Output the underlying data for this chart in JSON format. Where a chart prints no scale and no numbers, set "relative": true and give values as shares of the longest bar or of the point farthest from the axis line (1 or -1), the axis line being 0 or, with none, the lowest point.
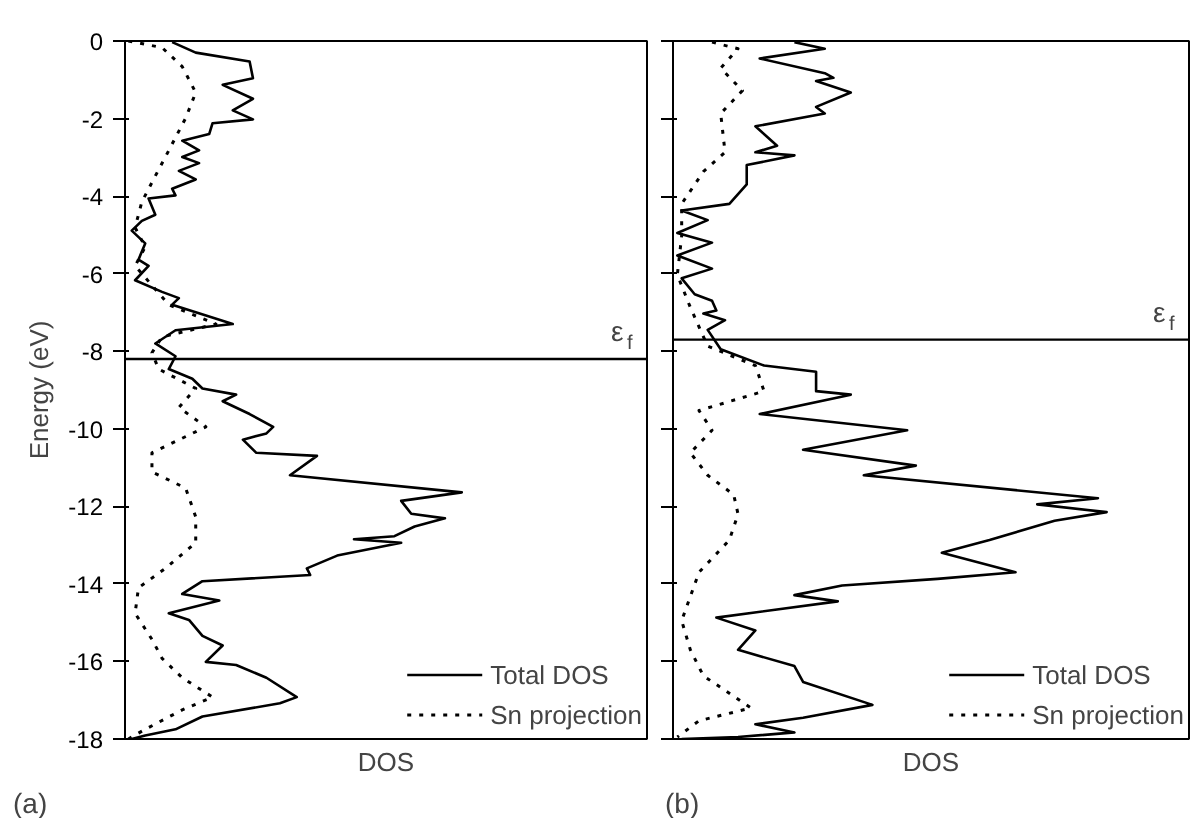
{
  "chart_data": [
    {
      "type": "line",
      "orientation": "horizontal",
      "relative": true,
      "xlabel": "DOS",
      "ylabel": "Energy (eV)",
      "ylim": [
        -18,
        0
      ],
      "yticks": [
        0,
        -2,
        -4,
        -6,
        -8,
        -10,
        -12,
        -14,
        -16,
        -18
      ],
      "grid": false,
      "legend": "bottom right",
      "annotations": [
        "(a)"
      ],
      "ref_lines": [
        {
          "axis": "y",
          "value": -8.2,
          "label": "ε$_{f}$",
          "color": "#000000",
          "line_style": "solid"
        }
      ],
      "series": [
        {
          "name": "Total DOS",
          "color": "#000000",
          "line_style": "solid",
          "x": [
            -0.03,
            -0.3,
            -0.53,
            -0.96,
            -1.13,
            -1.49,
            -1.79,
            -2.02,
            -2.12,
            -2.4,
            -2.57,
            -2.82,
            -2.99,
            -3.15,
            -3.35,
            -3.57,
            -3.81,
            -3.98,
            -4.06,
            -4.48,
            -4.64,
            -4.89,
            -5.22,
            -5.64,
            -5.8,
            -6.17,
            -6.47,
            -6.63,
            -6.8,
            -7.3,
            -7.46,
            -7.8,
            -8.13,
            -8.46,
            -8.71,
            -8.96,
            -9.12,
            -9.29,
            -9.62,
            -9.95,
            -10.12,
            -10.28,
            -10.62,
            -10.7,
            -11.2,
            -11.64,
            -11.86,
            -12.19,
            -12.31,
            -12.52,
            -12.77,
            -12.85,
            -12.94,
            -13.27,
            -13.6,
            -13.77,
            -13.93,
            -14.26,
            -14.43,
            -14.76,
            -14.93,
            -15.34,
            -15.59,
            -16.01,
            -16.09,
            -16.42,
            -16.92,
            -17.08,
            -17.42,
            -17.75,
            -17.91,
            -18
          ],
          "values": [
            0.14,
            0.21,
            0.37,
            0.38,
            0.29,
            0.38,
            0.32,
            0.38,
            0.26,
            0.25,
            0.17,
            0.22,
            0.17,
            0.22,
            0.16,
            0.21,
            0.14,
            0.15,
            0.07,
            0.09,
            0.05,
            0.02,
            0.06,
            0.04,
            0.07,
            0.03,
            0.11,
            0.16,
            0.14,
            0.32,
            0.15,
            0.09,
            0.15,
            0.13,
            0.2,
            0.23,
            0.33,
            0.29,
            0.37,
            0.44,
            0.42,
            0.35,
            0.39,
            0.57,
            0.49,
            1.0,
            0.82,
            0.85,
            0.95,
            0.86,
            0.8,
            0.68,
            0.82,
            0.63,
            0.54,
            0.55,
            0.23,
            0.17,
            0.28,
            0.13,
            0.19,
            0.23,
            0.29,
            0.24,
            0.33,
            0.42,
            0.51,
            0.46,
            0.23,
            0.15,
            0.06,
            0.02
          ]
        },
        {
          "name": "Sn projection",
          "color": "#000000",
          "line_style": "dotted",
          "x": [
            0,
            -0.17,
            -0.66,
            -1.33,
            -1.99,
            -2.99,
            -3.48,
            -4.15,
            -4.81,
            -5.31,
            -5.8,
            -6.3,
            -6.8,
            -7.3,
            -7.63,
            -8.04,
            -8.46,
            -8.96,
            -9.45,
            -9.95,
            -10.62,
            -11.11,
            -11.53,
            -12.27,
            -12.94,
            -13.6,
            -14.1,
            -14.76,
            -15.43,
            -15.92,
            -16.42,
            -16.92,
            -17.25,
            -17.75,
            -18
          ],
          "values": [
            0.01,
            0.11,
            0.17,
            0.21,
            0.18,
            0.12,
            0.09,
            0.05,
            0.03,
            0.06,
            0.03,
            0.08,
            0.13,
            0.27,
            0.11,
            0.08,
            0.1,
            0.21,
            0.16,
            0.24,
            0.08,
            0.08,
            0.18,
            0.21,
            0.21,
            0.12,
            0.04,
            0.03,
            0.08,
            0.11,
            0.17,
            0.26,
            0.17,
            0.06,
            0.01
          ]
        }
      ]
    },
    {
      "type": "line",
      "orientation": "horizontal",
      "relative": true,
      "xlabel": "DOS",
      "ylim": [
        -18,
        0
      ],
      "yticks": [
        0,
        -2,
        -4,
        -6,
        -8,
        -10,
        -12,
        -14,
        -16,
        -18
      ],
      "tick_labels": false,
      "grid": false,
      "legend": "bottom right",
      "annotations": [
        "(b)"
      ],
      "ref_lines": [
        {
          "axis": "y",
          "value": -7.7,
          "label": "ε$_{f}$",
          "color": "#000000",
          "line_style": "solid"
        }
      ],
      "series": [
        {
          "name": "Total DOS",
          "color": "#000000",
          "line_style": "solid",
          "x": [
            -0.03,
            -0.2,
            -0.45,
            -0.83,
            -0.95,
            -1.03,
            -1.33,
            -1.7,
            -1.87,
            -2.2,
            -2.7,
            -2.87,
            -2.95,
            -3.2,
            -3.7,
            -4.2,
            -4.37,
            -4.62,
            -4.95,
            -5.2,
            -5.53,
            -5.87,
            -6.12,
            -6.53,
            -6.7,
            -6.95,
            -7.03,
            -7.2,
            -7.45,
            -7.95,
            -8.37,
            -8.53,
            -9.03,
            -9.12,
            -9.62,
            -10.04,
            -10.54,
            -10.95,
            -11.2,
            -11.79,
            -11.95,
            -12.15,
            -12.37,
            -12.87,
            -13.2,
            -13.7,
            -13.87,
            -14.04,
            -14.29,
            -14.45,
            -14.87,
            -15.2,
            -15.7,
            -16.12,
            -16.53,
            -17.12,
            -17.45,
            -17.62,
            -17.83,
            -17.95,
            -18
          ],
          "values": [
            0.28,
            0.35,
            0.2,
            0.35,
            0.37,
            0.33,
            0.41,
            0.33,
            0.35,
            0.19,
            0.24,
            0.19,
            0.28,
            0.17,
            0.17,
            0.13,
            0.02,
            0.08,
            0.01,
            0.09,
            0.01,
            0.09,
            0.02,
            0.05,
            0.09,
            0.1,
            0.07,
            0.12,
            0.08,
            0.11,
            0.21,
            0.33,
            0.33,
            0.41,
            0.2,
            0.54,
            0.3,
            0.56,
            0.44,
            0.98,
            0.84,
            1.0,
            0.88,
            0.73,
            0.62,
            0.79,
            0.61,
            0.39,
            0.28,
            0.38,
            0.1,
            0.19,
            0.15,
            0.28,
            0.3,
            0.46,
            0.3,
            0.19,
            0.28,
            0.15,
            0.02
          ]
        },
        {
          "name": "Sn projection",
          "color": "#000000",
          "line_style": "dotted",
          "x": [
            -0.03,
            -0.2,
            -0.7,
            -1.28,
            -1.87,
            -2.87,
            -3.37,
            -4.2,
            -5.03,
            -6.03,
            -6.87,
            -7.37,
            -7.87,
            -8.37,
            -9.03,
            -9.53,
            -10.04,
            -10.62,
            -11.2,
            -11.7,
            -12.2,
            -12.87,
            -13.7,
            -14.95,
            -15.7,
            -16.37,
            -17.2,
            -17.53,
            -17.95
          ],
          "values": [
            0.09,
            0.15,
            0.11,
            0.16,
            0.11,
            0.12,
            0.07,
            0.02,
            0.02,
            0.01,
            0.04,
            0.06,
            0.08,
            0.19,
            0.21,
            0.06,
            0.09,
            0.04,
            0.08,
            0.14,
            0.15,
            0.13,
            0.06,
            0.02,
            0.04,
            0.07,
            0.18,
            0.06,
            0.01
          ]
        }
      ]
    }
  ]
}
